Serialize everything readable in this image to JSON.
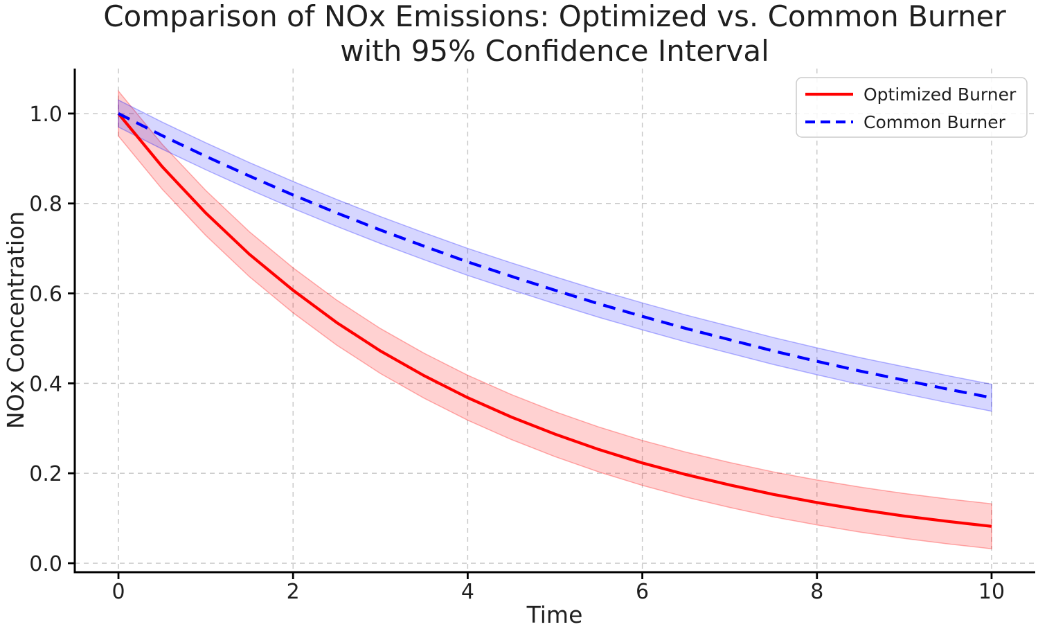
{
  "figure": {
    "title_line1": "Comparison of NOx Emissions: Optimized vs. Common Burner",
    "title_line2": "with 95% Confidence Interval",
    "background_color": "#ffffff",
    "text_color": "#1f1f1f",
    "spine_color": "#000000",
    "grid_color": "#c6c6c6"
  },
  "chart_data": {
    "type": "line",
    "title": "Comparison of NOx Emissions: Optimized vs. Common Burner with 95% Confidence Interval",
    "xlabel": "Time",
    "ylabel": "NOx Concentration",
    "xlim": [
      -0.5,
      10.5
    ],
    "ylim": [
      -0.02,
      1.1
    ],
    "x_ticks": [
      0,
      2,
      4,
      6,
      8,
      10
    ],
    "x_tick_labels": [
      "0",
      "2",
      "4",
      "6",
      "8",
      "10"
    ],
    "y_ticks": [
      0.0,
      0.2,
      0.4,
      0.6,
      0.8,
      1.0
    ],
    "y_tick_labels": [
      "0.0",
      "0.2",
      "0.4",
      "0.6",
      "0.8",
      "1.0"
    ],
    "grid": {
      "visible": true,
      "style": "dashed",
      "color": "#c6c6c6"
    },
    "legend": {
      "position": "upper right",
      "border_color": "#cccccc"
    },
    "x": [
      0,
      0.5,
      1,
      1.5,
      2,
      2.5,
      3,
      3.5,
      4,
      4.5,
      5,
      5.5,
      6,
      6.5,
      7,
      7.5,
      8,
      8.5,
      9,
      9.5,
      10
    ],
    "series": [
      {
        "name": "Optimized Burner",
        "color": "#ff0000",
        "line_style": "solid",
        "values": [
          1.0,
          0.882,
          0.779,
          0.687,
          0.607,
          0.535,
          0.472,
          0.417,
          0.368,
          0.325,
          0.287,
          0.253,
          0.223,
          0.197,
          0.174,
          0.153,
          0.135,
          0.119,
          0.105,
          0.093,
          0.082
        ],
        "ci_upper": [
          1.05,
          0.932,
          0.829,
          0.737,
          0.657,
          0.585,
          0.522,
          0.467,
          0.418,
          0.375,
          0.337,
          0.303,
          0.273,
          0.247,
          0.224,
          0.203,
          0.185,
          0.169,
          0.155,
          0.143,
          0.132
        ],
        "ci_lower": [
          0.95,
          0.832,
          0.729,
          0.637,
          0.557,
          0.485,
          0.422,
          0.367,
          0.318,
          0.275,
          0.237,
          0.203,
          0.173,
          0.147,
          0.124,
          0.103,
          0.085,
          0.069,
          0.055,
          0.043,
          0.032
        ],
        "band_fill": "rgba(255,0,0,0.18)",
        "band_edge": "rgba(255,0,0,0.30)"
      },
      {
        "name": "Common Burner",
        "color": "#0000ff",
        "line_style": "dashed",
        "values": [
          1.0,
          0.951,
          0.905,
          0.861,
          0.819,
          0.779,
          0.741,
          0.705,
          0.67,
          0.638,
          0.607,
          0.577,
          0.549,
          0.522,
          0.497,
          0.472,
          0.449,
          0.427,
          0.407,
          0.387,
          0.368
        ],
        "ci_upper": [
          1.03,
          0.981,
          0.935,
          0.891,
          0.849,
          0.809,
          0.771,
          0.735,
          0.7,
          0.668,
          0.637,
          0.607,
          0.579,
          0.552,
          0.527,
          0.502,
          0.479,
          0.457,
          0.437,
          0.417,
          0.398
        ],
        "ci_lower": [
          0.97,
          0.921,
          0.875,
          0.831,
          0.789,
          0.749,
          0.711,
          0.675,
          0.64,
          0.608,
          0.577,
          0.547,
          0.519,
          0.492,
          0.467,
          0.442,
          0.419,
          0.397,
          0.377,
          0.357,
          0.338
        ],
        "band_fill": "rgba(0,0,255,0.16)",
        "band_edge": "rgba(0,0,255,0.28)"
      }
    ]
  }
}
